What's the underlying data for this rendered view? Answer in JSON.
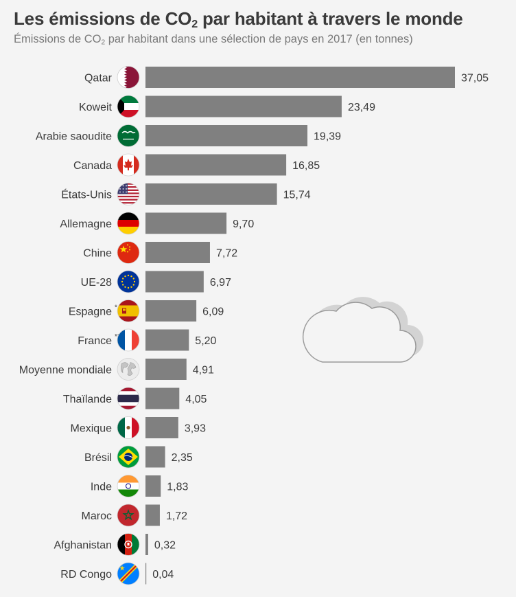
{
  "colors": {
    "background": "#f4f4f4",
    "bar": "#808080",
    "title": "#3a3a3a",
    "subtitle": "#7a7a7a"
  },
  "header": {
    "title_pre": "Les émissions de CO",
    "title_sub": "2",
    "title_post": " par habitant à travers le monde",
    "subtitle_pre": "Émissions de CO",
    "subtitle_sub": "2",
    "subtitle_post": " par habitant dans une sélection de pays en 2017 (en tonnes)"
  },
  "chart_data": {
    "type": "bar",
    "orientation": "horizontal",
    "title": "Les émissions de CO2 par habitant à travers le monde",
    "subtitle": "Émissions de CO2 par habitant dans une sélection de pays en 2017 (en tonnes)",
    "xlabel": "",
    "ylabel": "",
    "xlim": [
      0,
      37.05
    ],
    "grid": false,
    "legend": "none",
    "categories": [
      "Qatar",
      "Koweit",
      "Arabie saoudite",
      "Canada",
      "États-Unis",
      "Allemagne",
      "Chine",
      "UE-28",
      "Espagne",
      "France",
      "Moyenne mondiale",
      "Thaïlande",
      "Mexique",
      "Brésil",
      "Inde",
      "Maroc",
      "Afghanistan",
      "RD Congo"
    ],
    "category_notes": [
      "",
      "",
      "",
      "",
      "",
      "",
      "",
      "",
      "*",
      "**",
      "",
      "",
      "",
      "",
      "",
      "",
      "",
      ""
    ],
    "values": [
      37.05,
      23.49,
      19.39,
      16.85,
      15.74,
      9.7,
      7.72,
      6.97,
      6.09,
      5.2,
      4.91,
      4.05,
      3.93,
      2.35,
      1.83,
      1.72,
      0.32,
      0.04
    ],
    "value_labels": [
      "37,05",
      "23,49",
      "19,39",
      "16,85",
      "15,74",
      "9,70",
      "7,72",
      "6,97",
      "6,09",
      "5,20",
      "4,91",
      "4,05",
      "3,93",
      "2,35",
      "1,83",
      "1,72",
      "0,32",
      "0,04"
    ],
    "flag_icons": [
      "qatar-flag-icon",
      "kuwait-flag-icon",
      "saudi-arabia-flag-icon",
      "canada-flag-icon",
      "usa-flag-icon",
      "germany-flag-icon",
      "china-flag-icon",
      "eu-flag-icon",
      "spain-flag-icon",
      "france-flag-icon",
      "globe-icon",
      "thailand-flag-icon",
      "mexico-flag-icon",
      "brazil-flag-icon",
      "india-flag-icon",
      "morocco-flag-icon",
      "afghanistan-flag-icon",
      "dr-congo-flag-icon"
    ]
  },
  "decoration": {
    "icon": "cloud-icon"
  }
}
